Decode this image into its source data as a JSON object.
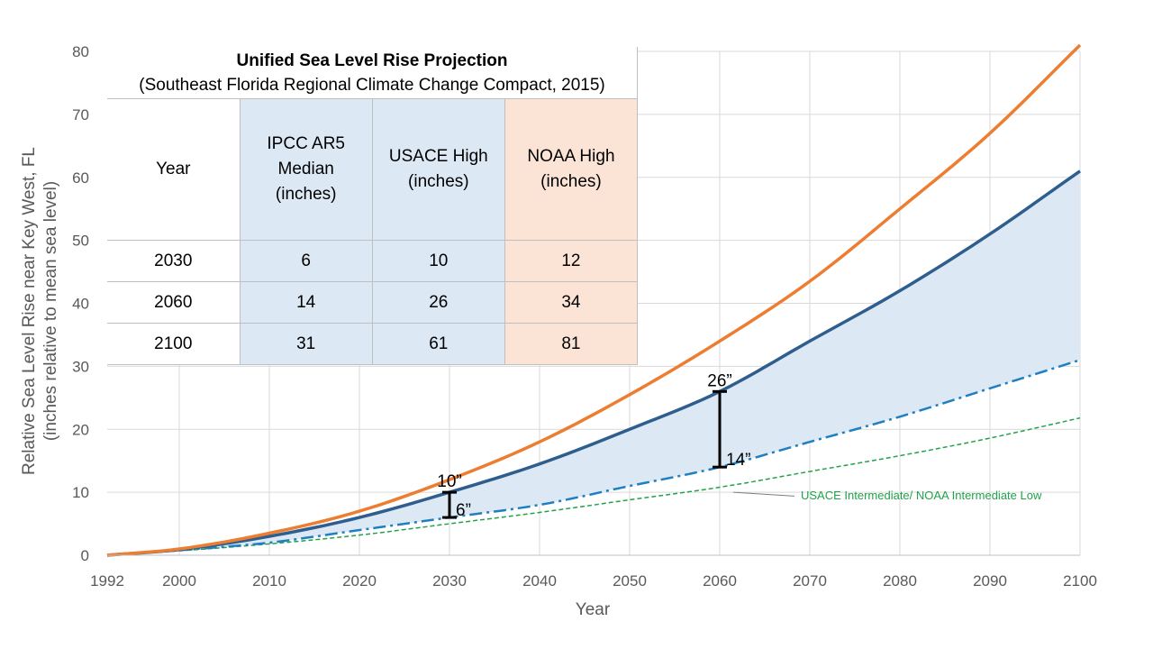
{
  "chart_data": {
    "type": "line",
    "xlabel": "Year",
    "ylabel_line1": "Relative Sea Level Rise near Key West, FL",
    "ylabel_line2": "(inches relative to mean sea level)",
    "xlim": [
      1992,
      2100
    ],
    "ylim": [
      0,
      80
    ],
    "x_ticks": [
      1992,
      2000,
      2010,
      2020,
      2030,
      2040,
      2050,
      2060,
      2070,
      2080,
      2090,
      2100
    ],
    "y_ticks": [
      0,
      10,
      20,
      30,
      40,
      50,
      60,
      70,
      80
    ],
    "grid": true,
    "x": [
      1992,
      2000,
      2010,
      2020,
      2030,
      2040,
      2050,
      2060,
      2070,
      2080,
      2090,
      2100
    ],
    "series": [
      {
        "key": "noaa_high",
        "color": "#ed7d31",
        "style": "solid",
        "values": [
          0,
          1.0,
          3.5,
          7.0,
          12.0,
          18.0,
          25.5,
          34.0,
          43.5,
          55.0,
          67.0,
          81.0
        ]
      },
      {
        "key": "usace_high",
        "color": "#2e5e8e",
        "style": "solid",
        "values": [
          0,
          0.9,
          3.0,
          6.0,
          10.0,
          14.5,
          20.0,
          26.0,
          34.0,
          42.0,
          51.0,
          61.0
        ]
      },
      {
        "key": "ipcc_median",
        "color": "#1f7fc0",
        "style": "dashdot",
        "values": [
          0,
          0.8,
          2.0,
          4.0,
          6.0,
          8.0,
          11.0,
          14.0,
          18.0,
          22.0,
          26.5,
          31.0
        ]
      },
      {
        "name": "USACE Intermediate/ NOAA Intermediate Low",
        "key": "usace_int",
        "color": "#22a24a",
        "style": "dashed",
        "values": [
          0,
          0.7,
          1.8,
          3.2,
          5.0,
          6.8,
          8.8,
          10.8,
          13.3,
          15.8,
          18.6,
          21.8
        ]
      }
    ],
    "band": {
      "upper": "usace_high",
      "lower": "ipcc_median",
      "color": "#dce9f5"
    },
    "annotations": [
      {
        "year": 2030,
        "top": 10,
        "bottom": 6,
        "top_label": "10”",
        "bottom_label": "6”"
      },
      {
        "year": 2060,
        "top": 26,
        "bottom": 14,
        "top_label": "26”",
        "bottom_label": "14”"
      }
    ],
    "table": {
      "title": "Unified Sea Level Rise Projection",
      "subtitle": "(Southeast Florida Regional Climate Change Compact, 2015)",
      "headers": {
        "year": "Year",
        "ipcc": [
          "IPCC AR5",
          "Median",
          "(inches)"
        ],
        "usace": [
          "USACE High",
          "(inches)"
        ],
        "noaa": [
          "NOAA High",
          "(inches)"
        ]
      },
      "rows": [
        {
          "year": "2030",
          "ipcc": "6",
          "usace": "10",
          "noaa": "12"
        },
        {
          "year": "2060",
          "ipcc": "14",
          "usace": "26",
          "noaa": "34"
        },
        {
          "year": "2100",
          "ipcc": "31",
          "usace": "61",
          "noaa": "81"
        }
      ]
    }
  }
}
